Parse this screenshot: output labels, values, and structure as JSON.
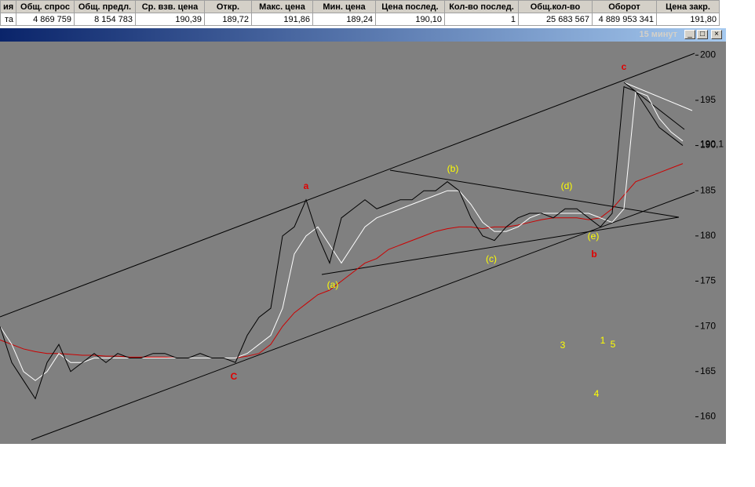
{
  "table": {
    "headers": [
      "ия",
      "Общ. спрос",
      "Общ. предл.",
      "Ср. взв. цена",
      "Откр.",
      "Макс. цена",
      "Мин. цена",
      "Цена послед.",
      "Кол-во послед.",
      "Общ.кол-во",
      "Оборот",
      "Цена закр."
    ],
    "rows": [
      [
        "та",
        "4 869 759",
        "8 154 783",
        "190,39",
        "189,72",
        "191,86",
        "189,24",
        "190,10",
        "1",
        "25 683 567",
        "4 889 953 341",
        "191,80"
      ]
    ]
  },
  "window": {
    "title": "15 минут"
  },
  "chart_data": {
    "type": "line",
    "ylim": [
      157,
      201.5
    ],
    "yticks": [
      160,
      165,
      170,
      175,
      180,
      185,
      190,
      195,
      200
    ],
    "last_price": {
      "value": 190.1,
      "label": "190,1"
    },
    "series": [
      {
        "color": "#000000",
        "values": [
          170,
          166,
          164,
          162,
          166,
          168,
          165,
          166,
          167,
          166,
          167,
          166.5,
          166.5,
          167,
          167,
          166.5,
          166.5,
          167,
          166.5,
          166.5,
          166,
          169,
          171,
          172,
          180,
          181,
          184,
          180,
          177,
          182,
          183,
          184,
          183,
          183.5,
          184,
          184,
          185,
          185,
          186,
          185,
          182,
          180,
          179.5,
          181,
          182,
          182.5,
          182.5,
          182,
          183,
          183,
          182,
          181,
          182.5,
          196.5,
          196,
          194,
          192,
          191,
          190
        ]
      },
      {
        "color": "#ffffff",
        "values": [
          170,
          168,
          165,
          164,
          165,
          167,
          166,
          166,
          166.5,
          166.5,
          166.5,
          166.5,
          166.5,
          166.5,
          166.5,
          166.5,
          166.5,
          166.5,
          166.5,
          166.5,
          166.5,
          167,
          168,
          169,
          172,
          178,
          180,
          181,
          179,
          177,
          179,
          181,
          182,
          182.5,
          183,
          183.5,
          184,
          184.5,
          185,
          185,
          183.5,
          181.5,
          180.5,
          180.5,
          181,
          182,
          182.5,
          182.5,
          182.5,
          182.5,
          182.5,
          182,
          181.5,
          183,
          196,
          195.5,
          193,
          191.5,
          190.5
        ]
      },
      {
        "color": "#cc0000",
        "values": [
          168.5,
          168,
          167.5,
          167.2,
          167,
          167,
          166.9,
          166.8,
          166.8,
          166.7,
          166.7,
          166.6,
          166.6,
          166.6,
          166.6,
          166.5,
          166.5,
          166.5,
          166.5,
          166.5,
          166.5,
          166.7,
          167,
          168,
          170,
          171.5,
          172.5,
          173.5,
          174,
          175,
          176,
          177,
          177.5,
          178.5,
          179,
          179.5,
          180,
          180.5,
          180.8,
          181,
          181,
          180.8,
          181,
          181,
          181.2,
          181.5,
          181.8,
          182,
          182,
          182,
          181.8,
          182,
          183,
          184.5,
          186,
          186.5,
          187,
          187.5,
          188
        ]
      }
    ],
    "annotations": [
      "a",
      "(b)",
      "(d)",
      "c",
      "(a)",
      "(c)",
      "(e)",
      "b",
      "C",
      "3",
      "1",
      "5",
      "4"
    ]
  }
}
